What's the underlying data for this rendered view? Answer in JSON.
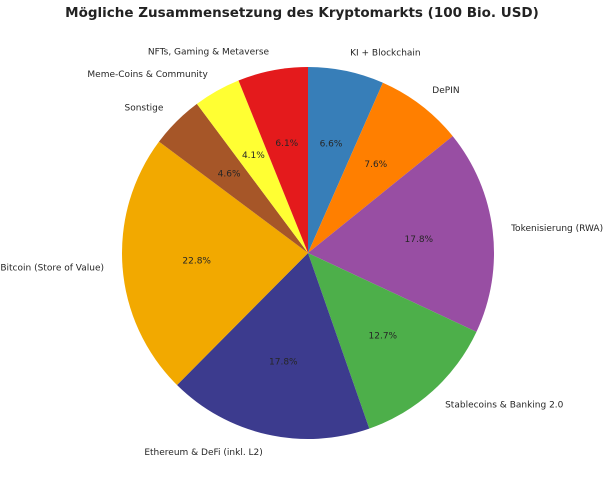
{
  "chart_data": {
    "type": "pie",
    "title": "Mögliche Zusammensetzung des Kryptomarkts (100 Bio. USD)",
    "start_angle_deg": 90,
    "direction": "clockwise",
    "slices": [
      {
        "label": "KI + Blockchain",
        "value": 6.6,
        "pct_label": "6.6%",
        "color": "#377eb8"
      },
      {
        "label": "DePIN",
        "value": 7.6,
        "pct_label": "7.6%",
        "color": "#ff7f00"
      },
      {
        "label": "Tokenisierung (RWA)",
        "value": 17.8,
        "pct_label": "17.8%",
        "color": "#984ea3"
      },
      {
        "label": "Stablecoins & Banking 2.0",
        "value": 12.7,
        "pct_label": "12.7%",
        "color": "#4daf4a"
      },
      {
        "label": "Ethereum & DeFi (inkl. L2)",
        "value": 17.8,
        "pct_label": "17.8%",
        "color": "#3c3b8e"
      },
      {
        "label": "Bitcoin (Store of Value)",
        "value": 22.8,
        "pct_label": "22.8%",
        "color": "#f2a900"
      },
      {
        "label": "Sonstige",
        "value": 4.6,
        "pct_label": "4.6%",
        "color": "#a65628"
      },
      {
        "label": "Meme-Coins & Community",
        "value": 4.1,
        "pct_label": "4.1%",
        "color": "#ffff33"
      },
      {
        "label": "NFTs, Gaming & Metaverse",
        "value": 6.1,
        "pct_label": "6.1%",
        "color": "#e41a1c"
      }
    ]
  }
}
